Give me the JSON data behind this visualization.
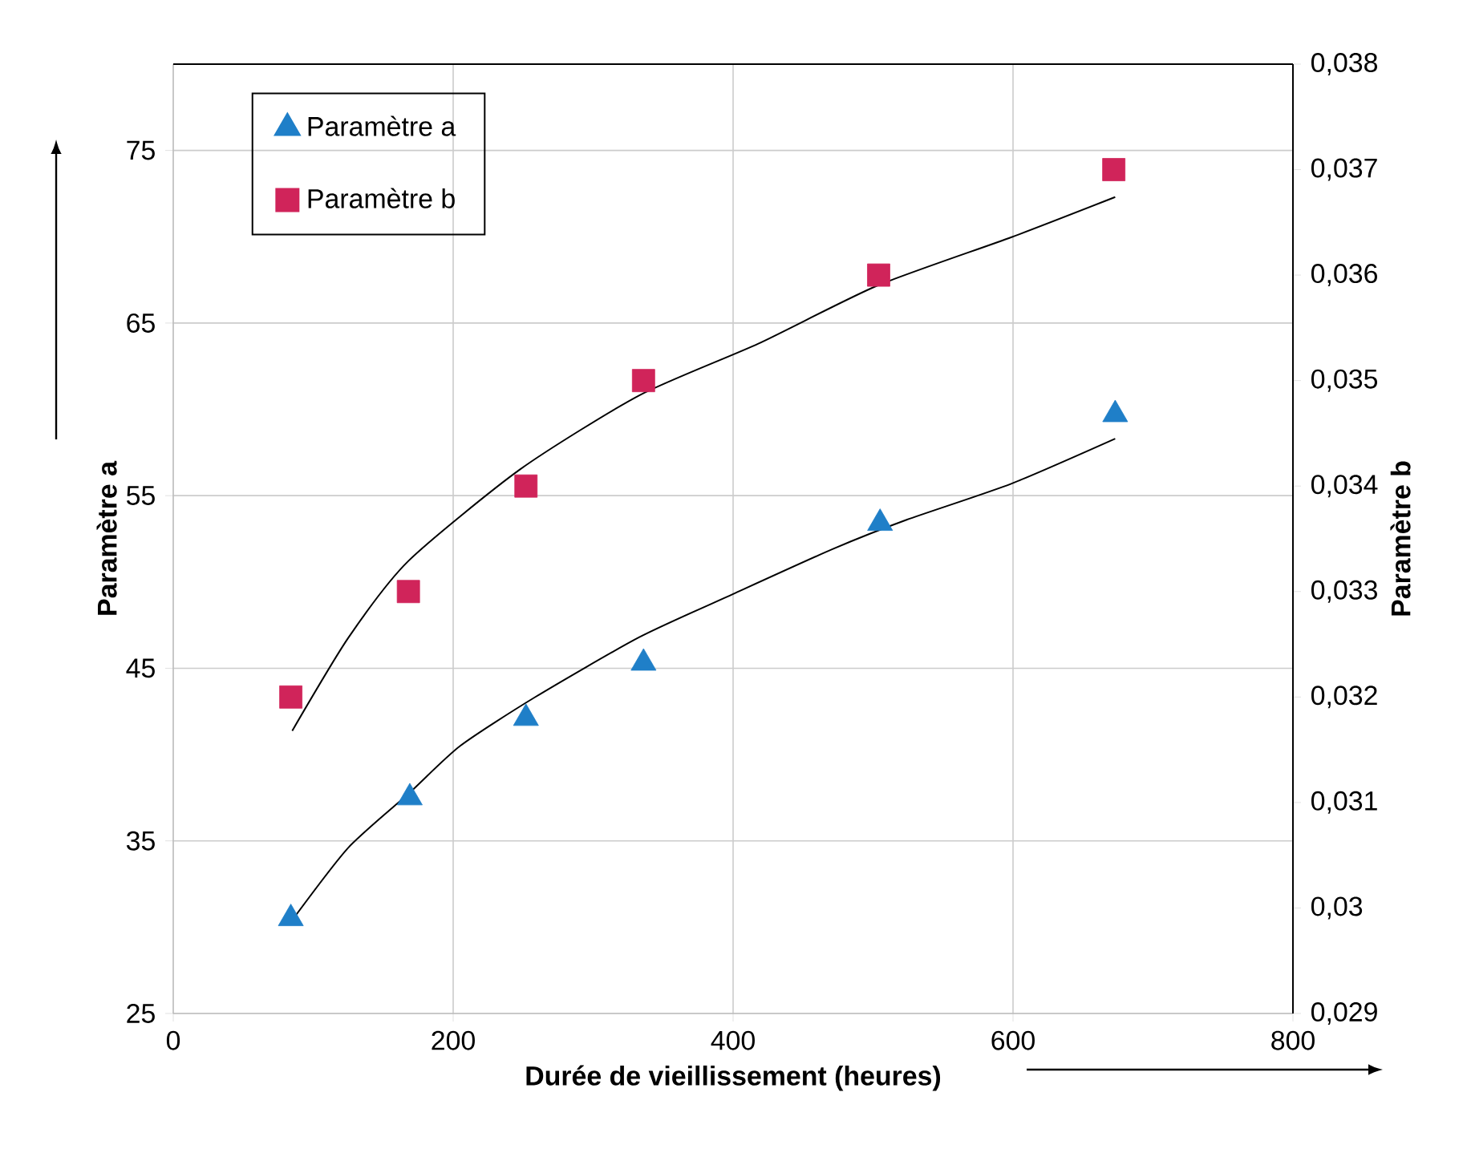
{
  "chart_data": {
    "type": "scatter",
    "xlabel": "Durée de vieillissement (heures)",
    "ylabel": "Paramètre a",
    "y2label": "Paramètre b",
    "xlim": [
      0,
      800
    ],
    "xticks": [
      0,
      200,
      400,
      600,
      800
    ],
    "ylim": [
      25,
      80
    ],
    "yticks": [
      25,
      35,
      45,
      55,
      65,
      75
    ],
    "y2lim": [
      0.029,
      0.038
    ],
    "y2ticks": [
      {
        "value": 0.029,
        "label": "0,029"
      },
      {
        "value": 0.03,
        "label": "0,03"
      },
      {
        "value": 0.031,
        "label": "0,031"
      },
      {
        "value": 0.032,
        "label": "0,032"
      },
      {
        "value": 0.033,
        "label": "0,033"
      },
      {
        "value": 0.034,
        "label": "0,034"
      },
      {
        "value": 0.035,
        "label": "0,035"
      },
      {
        "value": 0.036,
        "label": "0,036"
      },
      {
        "value": 0.037,
        "label": "0,037"
      },
      {
        "value": 0.038,
        "label": "0,038"
      }
    ],
    "grid": true,
    "legend": "top left",
    "series": [
      {
        "name": "Paramètre a",
        "color": "#1f7fc8",
        "marker": "triangle",
        "x": [
          84,
          169,
          252,
          336,
          505,
          673
        ],
        "values": [
          30.5,
          37.5,
          42.1,
          45.3,
          53.4,
          59.7
        ]
      },
      {
        "name": "Paramètre b",
        "color": "#d0245a",
        "marker": "square",
        "axis": "y2",
        "x": [
          84,
          168,
          252,
          336,
          504,
          672
        ],
        "values": [
          0.032,
          0.033,
          0.034,
          0.035,
          0.036,
          0.037
        ]
      },
      {
        "type": "line",
        "color": "#000000",
        "x": [
          84,
          125,
          169,
          205,
          258,
          333,
          400,
          471,
          524,
          599,
          673
        ],
        "values": [
          30.3,
          34.6,
          37.8,
          40.5,
          43.3,
          46.8,
          49.3,
          51.9,
          53.6,
          55.7,
          58.3
        ]
      },
      {
        "type": "line",
        "color": "#000000",
        "axis": "y2",
        "x": [
          85,
          125,
          168,
          248,
          333,
          418,
          503,
          599,
          673
        ],
        "values": [
          0.03168,
          0.03256,
          0.03329,
          0.03416,
          0.03486,
          0.03535,
          0.0359,
          0.03636,
          0.03674
        ]
      }
    ]
  }
}
